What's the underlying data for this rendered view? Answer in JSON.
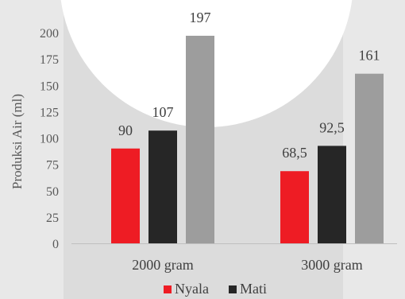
{
  "chart_data": {
    "type": "bar",
    "xlabel": "",
    "ylabel": "Produksi Air (ml)",
    "categories": [
      "2000 gram",
      "3000 gram"
    ],
    "series": [
      {
        "name": "Nyala",
        "color": "#ee1c24",
        "values": [
          90,
          68.5
        ],
        "labels": [
          "90",
          "68,5"
        ]
      },
      {
        "name": "Mati",
        "color": "#262626",
        "values": [
          107,
          92.5
        ],
        "labels": [
          "107",
          "92,5"
        ]
      },
      {
        "name": "",
        "color": "#9d9d9d",
        "values": [
          197,
          161
        ],
        "labels": [
          "197",
          "161"
        ]
      }
    ],
    "ylim": [
      0,
      200
    ],
    "yticks": [
      0,
      25,
      50,
      75,
      100,
      125,
      150,
      175,
      200
    ],
    "grid": false,
    "legend": "bottom"
  },
  "colors": {
    "background": "#e8e8e8",
    "plot_band": "#dcdcdc",
    "glare": "#ffffff"
  }
}
